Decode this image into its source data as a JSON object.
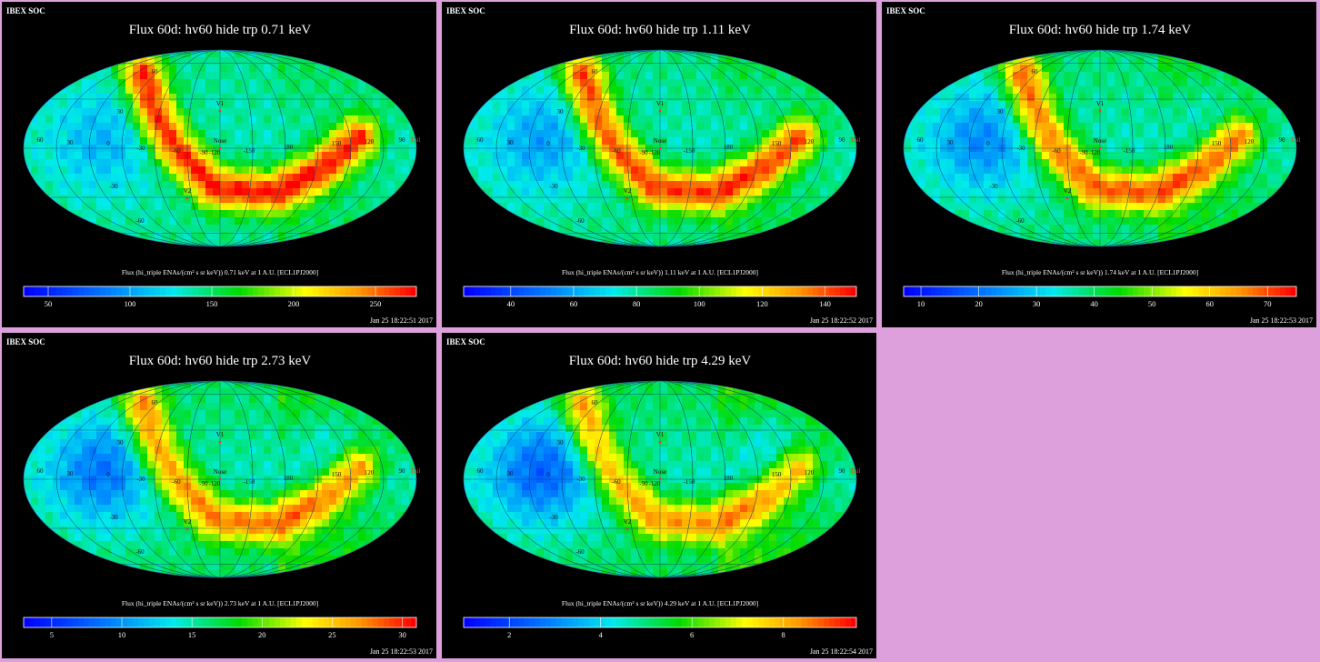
{
  "app": {
    "colors": {
      "background": "#dda0dd",
      "panel": "#000000",
      "marker": "#ff3030",
      "label": "#111111"
    }
  },
  "chart_data": [
    {
      "type": "heatmap",
      "projection": "mollweide",
      "header": "IBEX SOC",
      "title": "Flux 60d: hv60 hide trp 0.71 keV",
      "xlabel": "Flux (hi_triple ENAs/(cm² s sr keV)) 0.71 keV at 1 A.U. [ECL1PJ2000]",
      "timestamp": "Jan 25 18:22:51 2017",
      "colorbar": {
        "min": 35,
        "max": 275,
        "ticks": [
          50,
          100,
          150,
          200,
          250
        ]
      },
      "ribbon_peak": 260,
      "lon_labels": [
        "60",
        "30",
        "0",
        "-30",
        "-60",
        "-90",
        "-120",
        "-150",
        "180",
        "150",
        "120",
        "90"
      ],
      "lat_labels": [
        "60",
        "30",
        "-30",
        "-60"
      ],
      "markers": [
        "V1",
        "V2",
        "Nose",
        "Tail"
      ],
      "grid": true
    },
    {
      "type": "heatmap",
      "projection": "mollweide",
      "header": "IBEX SOC",
      "title": "Flux 60d: hv60 hide trp 1.11 keV",
      "xlabel": "Flux (hi_triple ENAs/(cm² s sr keV)) 1.11 keV at 1 A.U. [ECL1PJ2000]",
      "timestamp": "Jan 25 18:22:52 2017",
      "colorbar": {
        "min": 25,
        "max": 150,
        "ticks": [
          40,
          60,
          80,
          100,
          120,
          140
        ]
      },
      "ribbon_peak": 145,
      "lon_labels": [
        "60",
        "30",
        "0",
        "-30",
        "-60",
        "-90",
        "-120",
        "-150",
        "180",
        "150",
        "120",
        "90"
      ],
      "lat_labels": [
        "60",
        "30",
        "-30",
        "-60"
      ],
      "markers": [
        "V1",
        "V2",
        "Nose",
        "Tail"
      ],
      "grid": true
    },
    {
      "type": "heatmap",
      "projection": "mollweide",
      "header": "IBEX SOC",
      "title": "Flux 60d: hv60 hide trp 1.74 keV",
      "xlabel": "Flux (hi_triple ENAs/(cm² s sr keV)) 1.74 keV at 1 A.U. [ECL1PJ2000]",
      "timestamp": "Jan 25 18:22:53 2017",
      "colorbar": {
        "min": 7,
        "max": 75,
        "ticks": [
          10,
          20,
          30,
          40,
          50,
          60,
          70
        ]
      },
      "ribbon_peak": 70,
      "lon_labels": [
        "60",
        "30",
        "0",
        "-30",
        "-60",
        "-90",
        "-120",
        "-150",
        "180",
        "150",
        "120",
        "90"
      ],
      "lat_labels": [
        "60",
        "30",
        "-30",
        "-60"
      ],
      "markers": [
        "V1",
        "V2",
        "Nose",
        "Tail"
      ],
      "grid": true
    },
    {
      "type": "heatmap",
      "projection": "mollweide",
      "header": "IBEX SOC",
      "title": "Flux 60d: hv60 hide trp 2.73 keV",
      "xlabel": "Flux (hi_triple ENAs/(cm² s sr keV)) 2.73 keV at 1 A.U. [ECL1PJ2000]",
      "timestamp": "Jan 25 18:22:53 2017",
      "colorbar": {
        "min": 3,
        "max": 31,
        "ticks": [
          5,
          10,
          15,
          20,
          25,
          30
        ]
      },
      "ribbon_peak": 30,
      "lon_labels": [
        "60",
        "30",
        "0",
        "-30",
        "-60",
        "-90",
        "-120",
        "-150",
        "180",
        "150",
        "120",
        "90"
      ],
      "lat_labels": [
        "60",
        "30",
        "-30",
        "-60"
      ],
      "markers": [
        "V1",
        "V2",
        "Nose",
        "Tail"
      ],
      "grid": true
    },
    {
      "type": "heatmap",
      "projection": "mollweide",
      "header": "IBEX SOC",
      "title": "Flux 60d: hv60 hide trp 4.29 keV",
      "xlabel": "Flux (hi_triple ENAs/(cm² s sr keV)) 4.29 keV at 1 A.U. [ECL1PJ2000]",
      "timestamp": "Jan 25 18:22:54 2017",
      "colorbar": {
        "min": 1,
        "max": 9.6,
        "ticks": [
          2,
          4,
          6,
          8
        ]
      },
      "ribbon_peak": 9,
      "lon_labels": [
        "60",
        "30",
        "0",
        "-30",
        "-60",
        "-90",
        "-120",
        "-150",
        "180",
        "150",
        "120",
        "90"
      ],
      "lat_labels": [
        "60",
        "30",
        "-30",
        "-60"
      ],
      "markers": [
        "V1",
        "V2",
        "Nose",
        "Tail"
      ],
      "grid": true
    }
  ]
}
